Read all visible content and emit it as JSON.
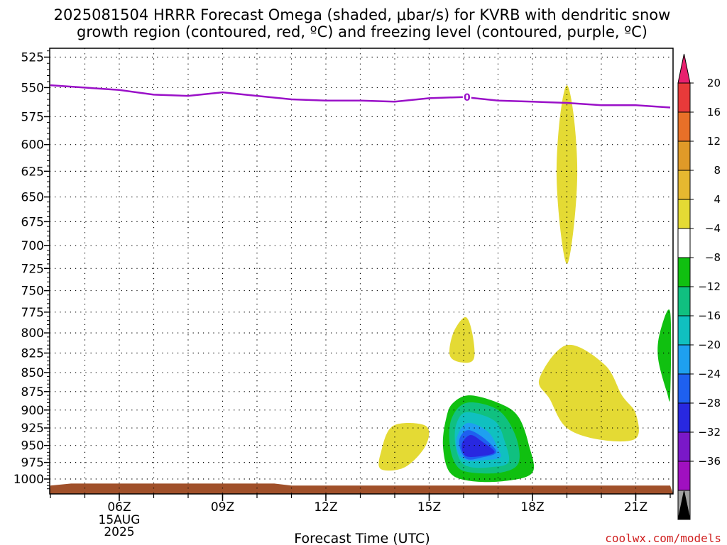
{
  "chart_data": {
    "type": "heatmap",
    "title_lines": [
      "2025081504 HRRR Forecast Omega (shaded, μbar/s) for KVRB with dendritic snow",
      "growth region (contoured, red, ºC) and freezing level (contoured, purple, ºC)"
    ],
    "xlabel": "Forecast Time (UTC)",
    "x_ticks": [
      {
        "hour": 6,
        "label": "06Z",
        "sub": [
          "15AUG",
          "2025"
        ]
      },
      {
        "hour": 9,
        "label": "09Z"
      },
      {
        "hour": 12,
        "label": "12Z"
      },
      {
        "hour": 15,
        "label": "15Z"
      },
      {
        "hour": 18,
        "label": "18Z"
      },
      {
        "hour": 21,
        "label": "21Z"
      }
    ],
    "x_range": [
      4,
      22
    ],
    "y_ticks": [
      525,
      550,
      575,
      600,
      625,
      650,
      675,
      700,
      725,
      750,
      775,
      800,
      825,
      850,
      875,
      900,
      925,
      950,
      975,
      1000
    ],
    "y_range_hpa": [
      510,
      1020
    ],
    "y_scale": "log-pressure",
    "grid": true,
    "colorbar": {
      "labels": [
        "20",
        "16",
        "12",
        "8",
        "4",
        "−4",
        "−8",
        "−12",
        "−16",
        "−20",
        "−24",
        "−28",
        "−32",
        "−36"
      ],
      "colors": [
        "#e8206e",
        "#e83a3a",
        "#e87028",
        "#e09a28",
        "#e6b830",
        "#e4da34",
        "#ffffff",
        "#10c010",
        "#10c080",
        "#10c0c0",
        "#1ea0f0",
        "#1e60f0",
        "#2828e0",
        "#7a18c8",
        "#a010c0",
        "#a0a0a0",
        "#000000"
      ]
    },
    "freezing_level": {
      "label": "0",
      "label_hour": 16.1,
      "color": "#9a10c8",
      "points": [
        [
          4,
          548
        ],
        [
          6,
          552
        ],
        [
          7,
          556
        ],
        [
          8,
          557
        ],
        [
          9,
          554
        ],
        [
          10,
          557
        ],
        [
          11,
          560
        ],
        [
          12,
          561
        ],
        [
          13,
          561
        ],
        [
          14,
          562
        ],
        [
          15,
          559
        ],
        [
          16,
          558
        ],
        [
          17,
          561
        ],
        [
          18,
          562
        ],
        [
          19,
          563
        ],
        [
          20,
          565
        ],
        [
          21,
          565
        ],
        [
          22,
          567
        ]
      ]
    },
    "omega_regions": [
      {
        "value": "4 to 8",
        "color": "#e4da34",
        "points": [
          [
            19.0,
            548
          ],
          [
            19.2,
            575
          ],
          [
            19.3,
            625
          ],
          [
            19.2,
            680
          ],
          [
            19.0,
            720
          ],
          [
            18.8,
            680
          ],
          [
            18.7,
            625
          ],
          [
            18.8,
            575
          ]
        ]
      },
      {
        "value": "4 to 8",
        "color": "#e4da34",
        "points": [
          [
            16.05,
            781
          ],
          [
            16.25,
            800
          ],
          [
            16.3,
            832
          ],
          [
            15.95,
            837
          ],
          [
            15.6,
            828
          ],
          [
            15.7,
            800
          ]
        ]
      },
      {
        "value": "4 to 8",
        "color": "#e4da34",
        "points": [
          [
            13.95,
            922
          ],
          [
            14.9,
            922
          ],
          [
            14.9,
            950
          ],
          [
            14.3,
            982
          ],
          [
            13.6,
            985
          ],
          [
            13.6,
            960
          ]
        ]
      },
      {
        "value": "4 to 8",
        "color": "#e4da34",
        "points": [
          [
            19.0,
            815
          ],
          [
            20.1,
            840
          ],
          [
            20.6,
            880
          ],
          [
            21.0,
            905
          ],
          [
            21.0,
            940
          ],
          [
            20.0,
            942
          ],
          [
            19.0,
            925
          ],
          [
            18.5,
            885
          ],
          [
            18.2,
            858
          ]
        ]
      },
      {
        "value": "-4 to -8",
        "color": "#10c010",
        "points": [
          [
            22.0,
            775
          ],
          [
            21.7,
            800
          ],
          [
            21.65,
            832
          ],
          [
            21.9,
            875
          ],
          [
            22.0,
            880
          ]
        ]
      },
      {
        "value": "-4 to -8",
        "color": "#10c010",
        "points": [
          [
            16.2,
            880
          ],
          [
            17.1,
            892
          ],
          [
            17.6,
            910
          ],
          [
            17.9,
            950
          ],
          [
            18.0,
            990
          ],
          [
            17.2,
            1003
          ],
          [
            16.2,
            1003
          ],
          [
            15.6,
            990
          ],
          [
            15.4,
            950
          ],
          [
            15.5,
            910
          ],
          [
            15.7,
            890
          ]
        ]
      },
      {
        "value": "-8 to -12",
        "color": "#10c080",
        "points": [
          [
            16.1,
            890
          ],
          [
            17.0,
            900
          ],
          [
            17.5,
            935
          ],
          [
            17.6,
            975
          ],
          [
            17.1,
            990
          ],
          [
            16.2,
            990
          ],
          [
            15.8,
            980
          ],
          [
            15.6,
            950
          ],
          [
            15.65,
            912
          ]
        ]
      },
      {
        "value": "-12 to -16",
        "color": "#10c0c0",
        "points": [
          [
            16.1,
            903
          ],
          [
            16.9,
            915
          ],
          [
            17.2,
            945
          ],
          [
            17.3,
            975
          ],
          [
            16.8,
            982
          ],
          [
            16.2,
            982
          ],
          [
            15.9,
            972
          ],
          [
            15.75,
            945
          ],
          [
            15.8,
            918
          ]
        ]
      },
      {
        "value": "-16 to -20",
        "color": "#1ea0f0",
        "points": [
          [
            16.1,
            918
          ],
          [
            16.7,
            930
          ],
          [
            17.0,
            955
          ],
          [
            17.05,
            968
          ],
          [
            16.5,
            972
          ],
          [
            16.1,
            972
          ],
          [
            15.85,
            962
          ],
          [
            15.8,
            940
          ]
        ]
      },
      {
        "value": "-20 to -24",
        "color": "#1e60f0",
        "points": [
          [
            16.15,
            928
          ],
          [
            16.6,
            940
          ],
          [
            16.95,
            960
          ],
          [
            16.5,
            968
          ],
          [
            16.1,
            970
          ],
          [
            15.9,
            955
          ],
          [
            15.9,
            938
          ]
        ]
      },
      {
        "value": "-24 to -28",
        "color": "#2828e0",
        "points": [
          [
            16.2,
            935
          ],
          [
            16.55,
            945
          ],
          [
            16.9,
            960
          ],
          [
            16.45,
            966
          ],
          [
            16.05,
            965
          ],
          [
            15.95,
            948
          ]
        ]
      }
    ],
    "terrain": {
      "color": "#a0502a",
      "points": [
        [
          4,
          1010
        ],
        [
          4.6,
          1007
        ],
        [
          10.5,
          1007
        ],
        [
          11,
          1010
        ],
        [
          22,
          1010
        ]
      ]
    }
  },
  "credit": "coolwx.com/models"
}
